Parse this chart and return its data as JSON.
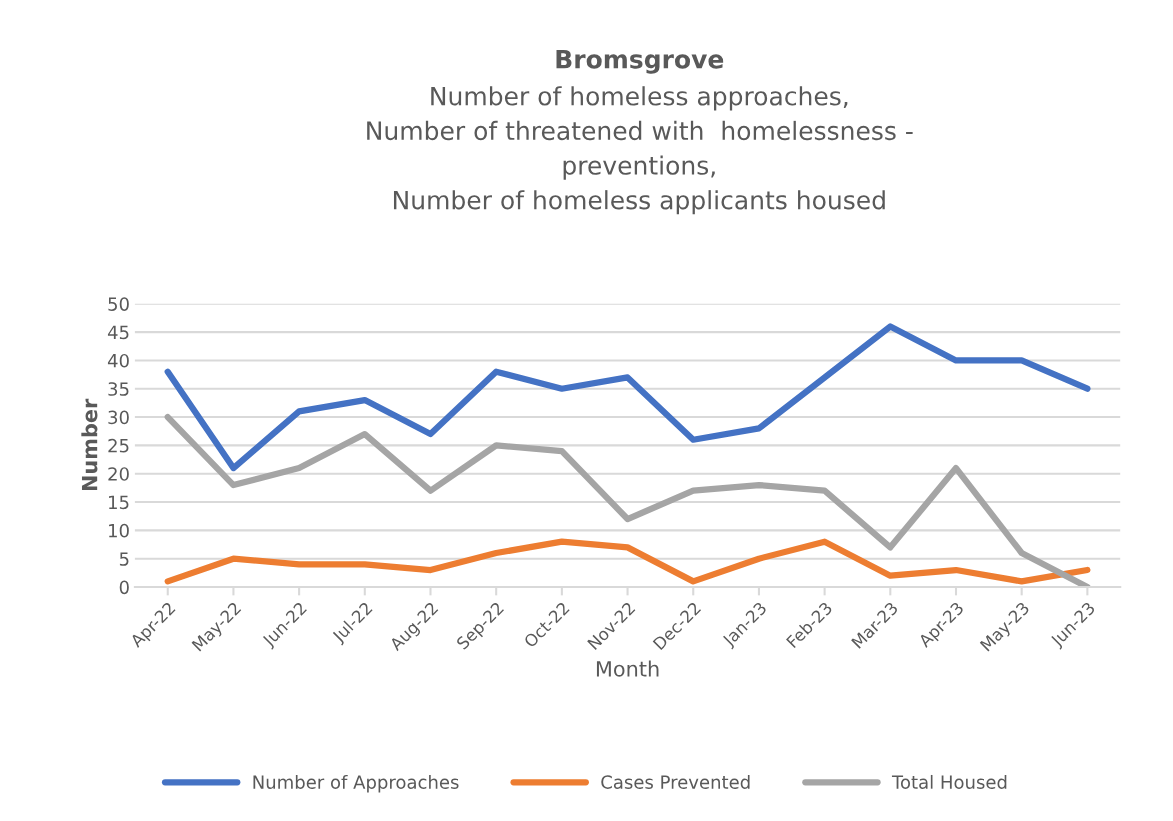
{
  "chart_data": {
    "type": "line",
    "title": "Bromsgrove",
    "subtitle": "Number of homeless approaches,\nNumber of threatened with  homelessness -\npreventions,\nNumber of homeless applicants housed",
    "xlabel": "Month",
    "ylabel": "Number",
    "categories": [
      "Apr-22",
      "May-22",
      "Jun-22",
      "Jul-22",
      "Aug-22",
      "Sep-22",
      "Oct-22",
      "Nov-22",
      "Dec-22",
      "Jan-23",
      "Feb-23",
      "Mar-23",
      "Apr-23",
      "May-23",
      "Jun-23"
    ],
    "series": [
      {
        "name": "Number of Approaches",
        "color": "#4472c4",
        "values": [
          38,
          21,
          31,
          33,
          27,
          38,
          35,
          37,
          26,
          28,
          37,
          46,
          40,
          40,
          35
        ]
      },
      {
        "name": "Cases Prevented",
        "color": "#ed7d31",
        "values": [
          1,
          5,
          4,
          4,
          3,
          6,
          8,
          7,
          1,
          5,
          8,
          2,
          3,
          1,
          3
        ]
      },
      {
        "name": "Total Housed",
        "color": "#a5a5a5",
        "values": [
          30,
          18,
          21,
          27,
          17,
          25,
          24,
          12,
          17,
          18,
          17,
          7,
          21,
          6,
          0
        ]
      }
    ],
    "ylim": [
      0,
      50
    ],
    "yticks": [
      0,
      5,
      10,
      15,
      20,
      25,
      30,
      35,
      40,
      45,
      50
    ],
    "grid": "y",
    "legend": "bottom",
    "marker": "none",
    "line_style": "solid"
  }
}
